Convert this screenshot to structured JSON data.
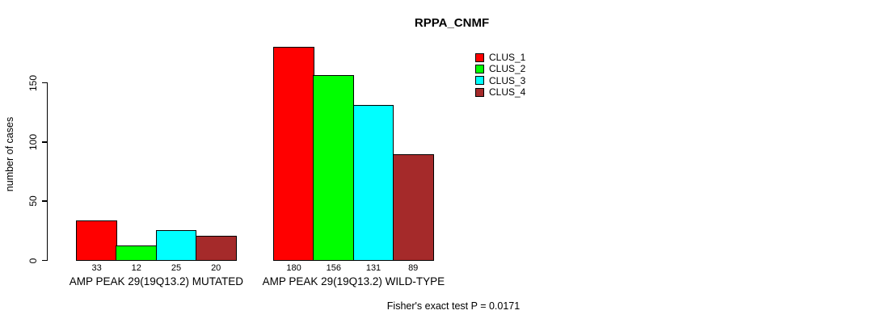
{
  "chart_data": {
    "type": "bar",
    "title": "RPPA_CNMF",
    "ylabel": "number of cases",
    "xlabel": "",
    "ylim": [
      0,
      150
    ],
    "yticks": [
      0,
      50,
      100,
      150
    ],
    "grid": false,
    "legend_position": "top-right-inside",
    "categories": [
      "AMP PEAK 29(19Q13.2) MUTATED",
      "AMP PEAK 29(19Q13.2) WILD-TYPE"
    ],
    "series": [
      {
        "name": "CLUS_1",
        "color": "#ff0000",
        "values": [
          33,
          180
        ]
      },
      {
        "name": "CLUS_2",
        "color": "#00ff00",
        "values": [
          12,
          156
        ]
      },
      {
        "name": "CLUS_3",
        "color": "#00ffff",
        "values": [
          25,
          131
        ]
      },
      {
        "name": "CLUS_4",
        "color": "#a52a2a",
        "values": [
          20,
          89
        ]
      }
    ],
    "bar_value_labels_shown": true,
    "annotation": "Fisher's exact test P = 0.0171"
  }
}
